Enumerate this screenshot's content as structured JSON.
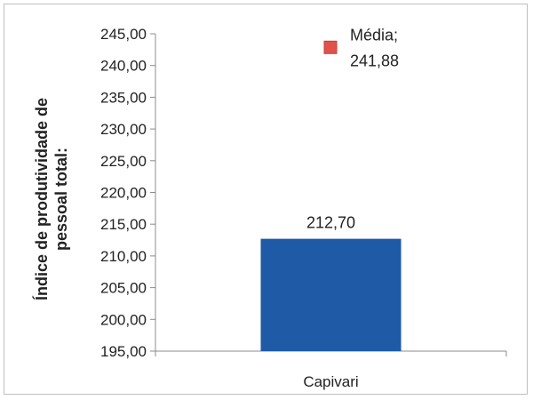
{
  "chart_data": {
    "type": "bar",
    "categories": [
      "Capivari"
    ],
    "series": [
      {
        "values": [
          212.7
        ],
        "color": "#1f5aa6"
      }
    ],
    "data_labels": [
      "212,70"
    ],
    "reference": {
      "name": "Média",
      "value": 241.88,
      "label_line1": "Média;",
      "label_line2": "241,88",
      "color": "#e0524a"
    },
    "ylabel": "Índice de produtividade de\npessoal total:",
    "ylim": [
      195,
      245
    ],
    "yticks": [
      "195,00",
      "200,00",
      "205,00",
      "210,00",
      "215,00",
      "220,00",
      "225,00",
      "230,00",
      "235,00",
      "240,00",
      "245,00"
    ],
    "ytick_values": [
      195,
      200,
      205,
      210,
      215,
      220,
      225,
      230,
      235,
      240,
      245
    ],
    "grid": false,
    "legend": "none"
  }
}
